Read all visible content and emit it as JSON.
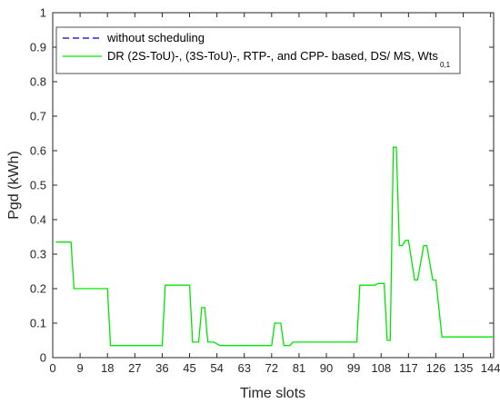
{
  "chart_data": {
    "type": "line",
    "xlabel": "Time slots",
    "ylabel": "Pgd (kWh)",
    "xlim": [
      0,
      145
    ],
    "ylim": [
      0,
      1
    ],
    "xticks": [
      0,
      9,
      18,
      27,
      36,
      45,
      54,
      63,
      72,
      81,
      90,
      99,
      108,
      117,
      126,
      135,
      144
    ],
    "yticks": [
      0,
      0.1,
      0.2,
      0.3,
      0.4,
      0.5,
      0.6,
      0.7,
      0.8,
      0.9,
      1
    ],
    "ytick_labels": [
      "0",
      "0.1",
      "0.2",
      "0.3",
      "0.4",
      "0.5",
      "0.6",
      "0.7",
      "0.8",
      "0.9",
      "1"
    ],
    "grid": false,
    "legend_position": "top-left",
    "series": [
      {
        "name": "without scheduling",
        "color": "#0000cc",
        "style": "dashed",
        "x": [],
        "y": []
      },
      {
        "name": "DR (2S-ToU)-, (3S-ToU)-, RTP-, and CPP- based, DS/ MS, Wts",
        "name_subscript": "0,1",
        "color": "#00e600",
        "style": "solid",
        "x": [
          1,
          6,
          7,
          18,
          19,
          36,
          37,
          45,
          46,
          48,
          49,
          50,
          51,
          53,
          54,
          55,
          56,
          72,
          73,
          75,
          76,
          78,
          79,
          100,
          101,
          106,
          107,
          109,
          110,
          111,
          112,
          113,
          114,
          115,
          116,
          117,
          119,
          120,
          122,
          123,
          125,
          126,
          128,
          129,
          130,
          131,
          132,
          133,
          145
        ],
        "y": [
          0.335,
          0.335,
          0.2,
          0.2,
          0.035,
          0.035,
          0.21,
          0.21,
          0.045,
          0.045,
          0.145,
          0.145,
          0.045,
          0.045,
          0.04,
          0.035,
          0.035,
          0.035,
          0.1,
          0.1,
          0.035,
          0.035,
          0.045,
          0.045,
          0.21,
          0.21,
          0.215,
          0.215,
          0.05,
          0.05,
          0.61,
          0.61,
          0.325,
          0.325,
          0.34,
          0.34,
          0.225,
          0.225,
          0.325,
          0.325,
          0.225,
          0.225,
          0.06,
          0.06,
          0.06,
          0.06,
          0.06,
          0.06,
          0.06
        ]
      }
    ]
  }
}
